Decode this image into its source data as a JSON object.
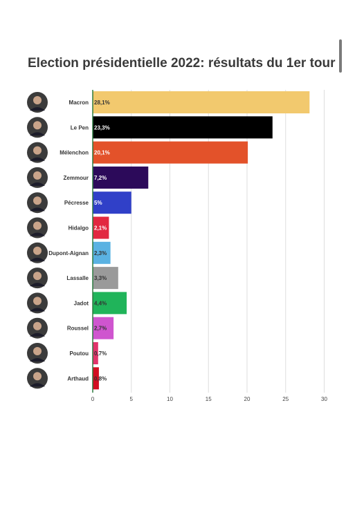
{
  "title": "Election présidentielle 2022: résultats du 1er tour",
  "chart_data": {
    "type": "bar",
    "orientation": "horizontal",
    "title": "Election présidentielle 2022: résultats du 1er tour",
    "xlabel": "",
    "ylabel": "",
    "xlim": [
      0,
      30
    ],
    "xticks": [
      0,
      5,
      10,
      15,
      20,
      25,
      30
    ],
    "grid": true,
    "categories": [
      "Macron",
      "Le Pen",
      "Mélenchon",
      "Zemmour",
      "Pécresse",
      "Hidalgo",
      "Dupont-Aignan",
      "Lassalle",
      "Jadot",
      "Roussel",
      "Poutou",
      "Arthaud"
    ],
    "values": [
      28.1,
      23.3,
      20.1,
      7.2,
      5,
      2.1,
      2.3,
      3.3,
      4.4,
      2.7,
      0.7,
      0.8
    ],
    "value_labels": [
      "28,1%",
      "23,3%",
      "20,1%",
      "7,2%",
      "5%",
      "2,1%",
      "2,3%",
      "3,3%",
      "4,4%",
      "2,7%",
      "0,7%",
      "0,8%"
    ],
    "colors": [
      "#f2c96e",
      "#000000",
      "#e3522a",
      "#2c0a5a",
      "#3040c8",
      "#e22840",
      "#5ab2e2",
      "#9a9a9a",
      "#20b45a",
      "#cf55cf",
      "#e0346a",
      "#d20f22"
    ],
    "label_colors": [
      "#333333",
      "#ffffff",
      "#ffffff",
      "#ffffff",
      "#ffffff",
      "#ffffff",
      "#333333",
      "#333333",
      "#333333",
      "#333333",
      "#333333",
      "#333333"
    ]
  }
}
